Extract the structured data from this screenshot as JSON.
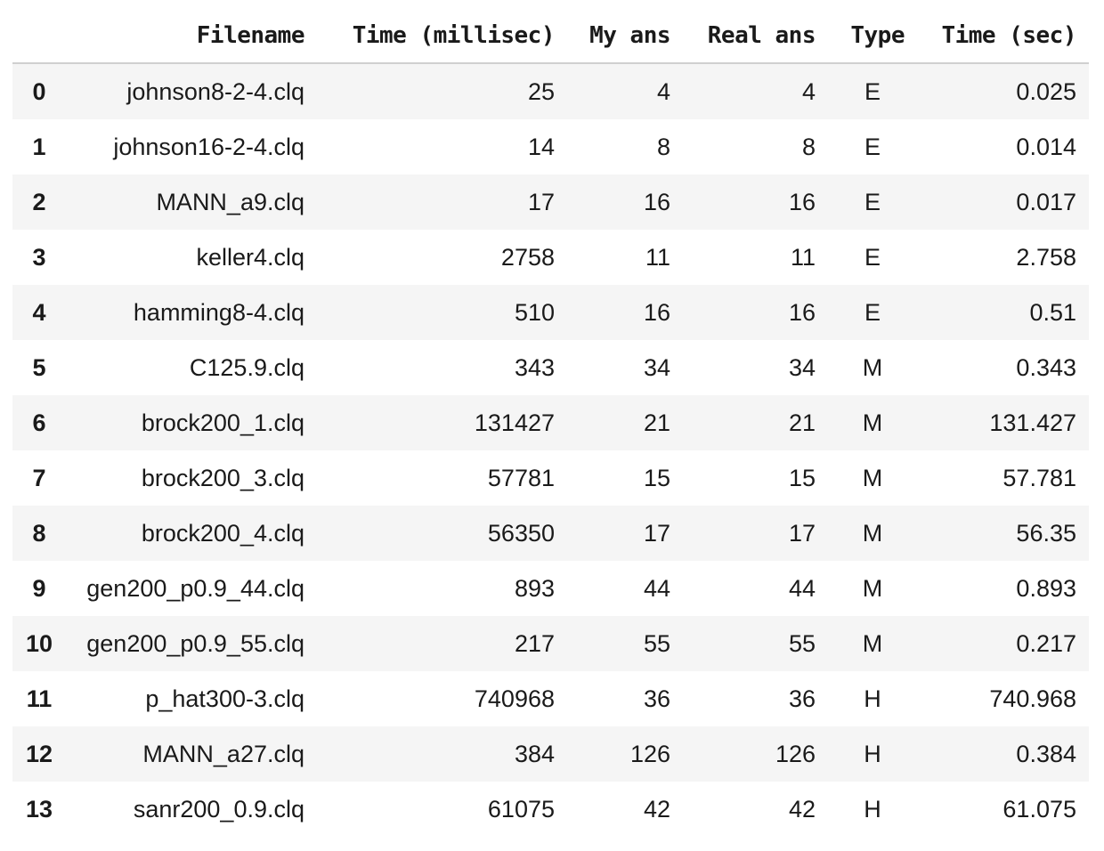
{
  "table": {
    "index_header": "",
    "columns": [
      "Filename",
      "Time (millisec)",
      "My ans",
      "Real ans",
      "Type",
      "Time (sec)"
    ],
    "rows": [
      {
        "index": "0",
        "filename": "johnson8-2-4.clq",
        "time_ms": "25",
        "my_ans": "4",
        "real_ans": "4",
        "type": "E",
        "time_sec": "0.025"
      },
      {
        "index": "1",
        "filename": "johnson16-2-4.clq",
        "time_ms": "14",
        "my_ans": "8",
        "real_ans": "8",
        "type": "E",
        "time_sec": "0.014"
      },
      {
        "index": "2",
        "filename": "MANN_a9.clq",
        "time_ms": "17",
        "my_ans": "16",
        "real_ans": "16",
        "type": "E",
        "time_sec": "0.017"
      },
      {
        "index": "3",
        "filename": "keller4.clq",
        "time_ms": "2758",
        "my_ans": "11",
        "real_ans": "11",
        "type": "E",
        "time_sec": "2.758"
      },
      {
        "index": "4",
        "filename": "hamming8-4.clq",
        "time_ms": "510",
        "my_ans": "16",
        "real_ans": "16",
        "type": "E",
        "time_sec": "0.51"
      },
      {
        "index": "5",
        "filename": "C125.9.clq",
        "time_ms": "343",
        "my_ans": "34",
        "real_ans": "34",
        "type": "M",
        "time_sec": "0.343"
      },
      {
        "index": "6",
        "filename": "brock200_1.clq",
        "time_ms": "131427",
        "my_ans": "21",
        "real_ans": "21",
        "type": "M",
        "time_sec": "131.427"
      },
      {
        "index": "7",
        "filename": "brock200_3.clq",
        "time_ms": "57781",
        "my_ans": "15",
        "real_ans": "15",
        "type": "M",
        "time_sec": "57.781"
      },
      {
        "index": "8",
        "filename": "brock200_4.clq",
        "time_ms": "56350",
        "my_ans": "17",
        "real_ans": "17",
        "type": "M",
        "time_sec": "56.35"
      },
      {
        "index": "9",
        "filename": "gen200_p0.9_44.clq",
        "time_ms": "893",
        "my_ans": "44",
        "real_ans": "44",
        "type": "M",
        "time_sec": "0.893"
      },
      {
        "index": "10",
        "filename": "gen200_p0.9_55.clq",
        "time_ms": "217",
        "my_ans": "55",
        "real_ans": "55",
        "type": "M",
        "time_sec": "0.217"
      },
      {
        "index": "11",
        "filename": "p_hat300-3.clq",
        "time_ms": "740968",
        "my_ans": "36",
        "real_ans": "36",
        "type": "H",
        "time_sec": "740.968"
      },
      {
        "index": "12",
        "filename": "MANN_a27.clq",
        "time_ms": "384",
        "my_ans": "126",
        "real_ans": "126",
        "type": "H",
        "time_sec": "0.384"
      },
      {
        "index": "13",
        "filename": "sanr200_0.9.clq",
        "time_ms": "61075",
        "my_ans": "42",
        "real_ans": "42",
        "type": "H",
        "time_sec": "61.075"
      }
    ]
  },
  "colors": {
    "striped_row": "#f5f5f5",
    "header_rule": "#cfcfcf",
    "text": "#1a1a1a"
  }
}
